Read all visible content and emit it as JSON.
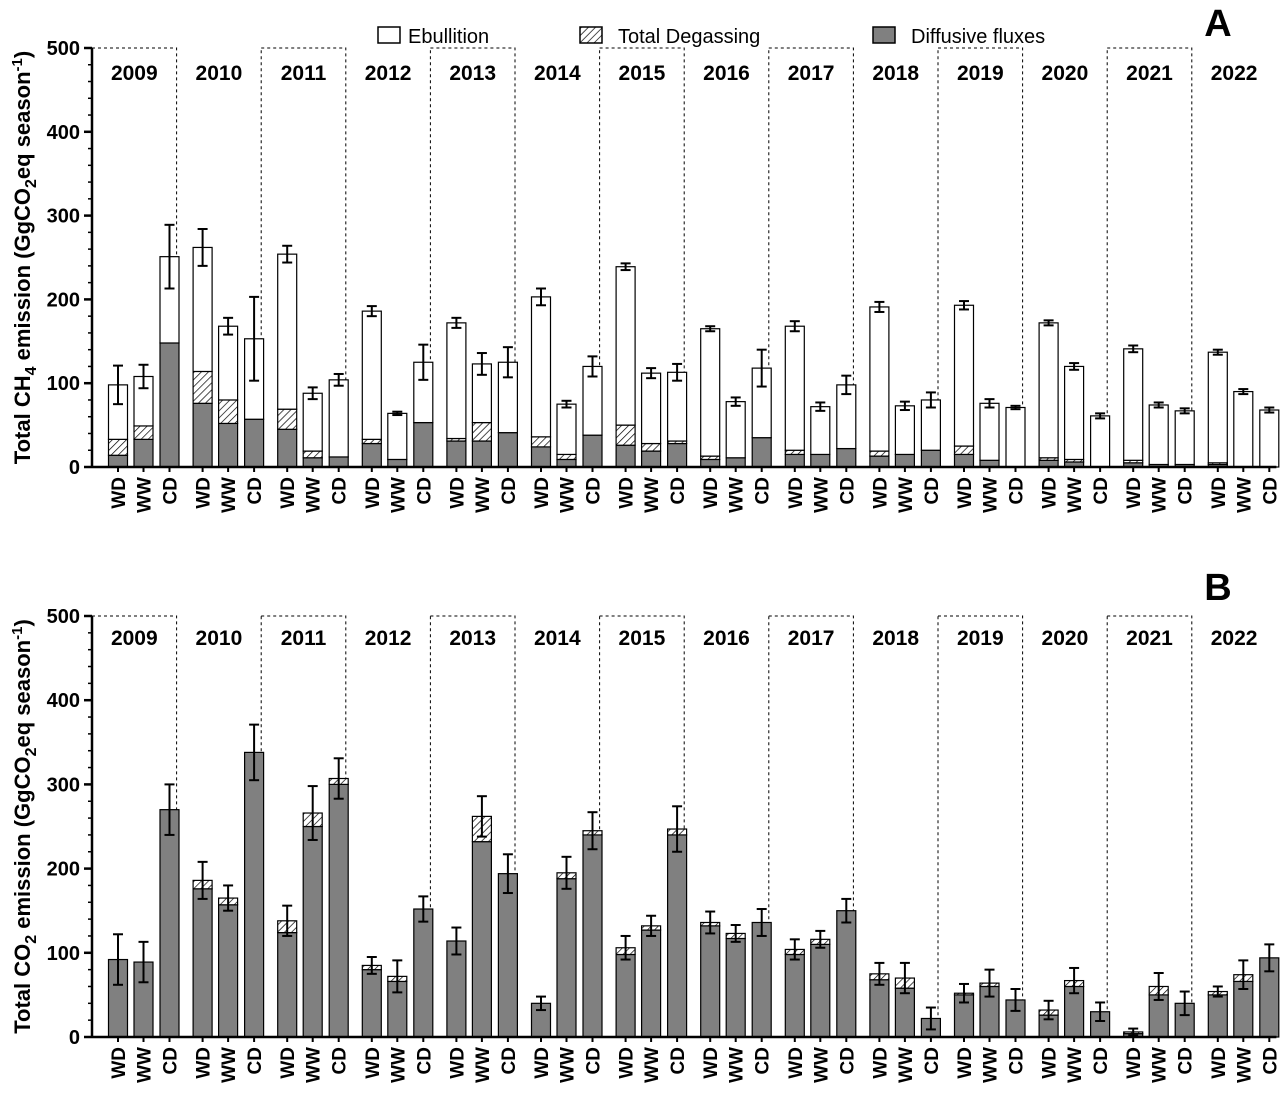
{
  "legend": {
    "ebullition": "Ebullition",
    "degassing": "Total Degassing",
    "diffusive": "Diffusive fluxes"
  },
  "colors": {
    "diffusive": "#808080",
    "ebullition": "#ffffff",
    "stroke": "#000000"
  },
  "chart_data": [
    {
      "type": "bar",
      "stacked": true,
      "panel_label": "A",
      "ylabel_pre": "Total CH",
      "ylabel_sub": "4",
      "ylabel_mid": " emission (GgCO",
      "ylabel_sub2": "2",
      "ylabel_post": "eq season",
      "ylabel_sup": "-1",
      "ylabel_close": ")",
      "ylim": [
        0,
        500
      ],
      "yticks": [
        0,
        100,
        200,
        300,
        400,
        500
      ],
      "years": [
        "2009",
        "2010",
        "2011",
        "2012",
        "2013",
        "2014",
        "2015",
        "2016",
        "2017",
        "2018",
        "2019",
        "2020",
        "2021",
        "2022"
      ],
      "categories": [
        "WD",
        "WW",
        "CD"
      ],
      "series": [
        {
          "name": "Diffusive fluxes",
          "values": [
            [
              14,
              33,
              148
            ],
            [
              76,
              52,
              57
            ],
            [
              45,
              11,
              12
            ],
            [
              28,
              9,
              53
            ],
            [
              31,
              31,
              41
            ],
            [
              24,
              9,
              38
            ],
            [
              26,
              19,
              28
            ],
            [
              9,
              11,
              35
            ],
            [
              15,
              15,
              22
            ],
            [
              13,
              15,
              20
            ],
            [
              15,
              8,
              0
            ],
            [
              8,
              6,
              0
            ],
            [
              5,
              3,
              3
            ],
            [
              3,
              0,
              0
            ]
          ]
        },
        {
          "name": "Total Degassing",
          "values": [
            [
              19,
              16,
              0
            ],
            [
              38,
              28,
              0
            ],
            [
              24,
              8,
              0
            ],
            [
              5,
              0,
              0
            ],
            [
              3,
              22,
              0
            ],
            [
              12,
              6,
              0
            ],
            [
              24,
              9,
              3
            ],
            [
              4,
              0,
              0
            ],
            [
              5,
              0,
              0
            ],
            [
              6,
              0,
              0
            ],
            [
              10,
              0,
              0
            ],
            [
              3,
              3,
              0
            ],
            [
              3,
              0,
              0
            ],
            [
              2,
              0,
              0
            ]
          ]
        },
        {
          "name": "Ebullition",
          "values": [
            [
              65,
              59,
              103
            ],
            [
              148,
              88,
              96
            ],
            [
              185,
              69,
              92
            ],
            [
              153,
              55,
              72
            ],
            [
              138,
              70,
              84
            ],
            [
              167,
              60,
              82
            ],
            [
              189,
              84,
              82
            ],
            [
              152,
              67,
              83
            ],
            [
              148,
              57,
              76
            ],
            [
              172,
              58,
              60
            ],
            [
              168,
              68,
              71
            ],
            [
              161,
              111,
              61
            ],
            [
              133,
              71,
              64
            ],
            [
              132,
              90,
              68
            ]
          ]
        }
      ],
      "error": [
        [
          23,
          14,
          38
        ],
        [
          22,
          10,
          50
        ],
        [
          10,
          7,
          7
        ],
        [
          6,
          2,
          21
        ],
        [
          6,
          13,
          18
        ],
        [
          10,
          4,
          12
        ],
        [
          4,
          6,
          10
        ],
        [
          3,
          5,
          22
        ],
        [
          6,
          5,
          11
        ],
        [
          6,
          5,
          9
        ],
        [
          5,
          5,
          2
        ],
        [
          3,
          4,
          3
        ],
        [
          4,
          3,
          3
        ],
        [
          3,
          3,
          3
        ]
      ]
    },
    {
      "type": "bar",
      "stacked": true,
      "panel_label": "B",
      "ylabel_pre": "Total CO",
      "ylabel_sub": "2",
      "ylabel_mid": " emission (GgCO",
      "ylabel_sub2": "2",
      "ylabel_post": "eq season",
      "ylabel_sup": "-1",
      "ylabel_close": ")",
      "ylim": [
        0,
        500
      ],
      "yticks": [
        0,
        100,
        200,
        300,
        400,
        500
      ],
      "years": [
        "2009",
        "2010",
        "2011",
        "2012",
        "2013",
        "2014",
        "2015",
        "2016",
        "2017",
        "2018",
        "2019",
        "2020",
        "2021",
        "2022"
      ],
      "categories": [
        "WD",
        "WW",
        "CD"
      ],
      "series": [
        {
          "name": "Diffusive fluxes",
          "values": [
            [
              92,
              89,
              270
            ],
            [
              176,
              157,
              338
            ],
            [
              124,
              250,
              300
            ],
            [
              80,
              66,
              152
            ],
            [
              114,
              232,
              194
            ],
            [
              40,
              188,
              240
            ],
            [
              98,
              127,
              240
            ],
            [
              132,
              117,
              136
            ],
            [
              98,
              110,
              150
            ],
            [
              68,
              58,
              22
            ],
            [
              50,
              60,
              44
            ],
            [
              26,
              60,
              30
            ],
            [
              4,
              50,
              40
            ],
            [
              50,
              66,
              94
            ]
          ]
        },
        {
          "name": "Total Degassing",
          "values": [
            [
              0,
              0,
              0
            ],
            [
              10,
              8,
              0
            ],
            [
              14,
              16,
              7
            ],
            [
              5,
              6,
              0
            ],
            [
              0,
              30,
              0
            ],
            [
              0,
              7,
              5
            ],
            [
              8,
              5,
              7
            ],
            [
              4,
              6,
              0
            ],
            [
              6,
              6,
              0
            ],
            [
              7,
              12,
              0
            ],
            [
              2,
              4,
              0
            ],
            [
              6,
              7,
              0
            ],
            [
              2,
              10,
              0
            ],
            [
              4,
              8,
              0
            ]
          ]
        }
      ],
      "error": [
        [
          30,
          24,
          30
        ],
        [
          22,
          15,
          33
        ],
        [
          18,
          32,
          24
        ],
        [
          10,
          19,
          15
        ],
        [
          16,
          24,
          23
        ],
        [
          8,
          19,
          22
        ],
        [
          14,
          12,
          27
        ],
        [
          13,
          10,
          16
        ],
        [
          12,
          10,
          14
        ],
        [
          13,
          18,
          13
        ],
        [
          11,
          16,
          13
        ],
        [
          11,
          15,
          11
        ],
        [
          4,
          16,
          14
        ],
        [
          6,
          17,
          16
        ]
      ]
    }
  ]
}
